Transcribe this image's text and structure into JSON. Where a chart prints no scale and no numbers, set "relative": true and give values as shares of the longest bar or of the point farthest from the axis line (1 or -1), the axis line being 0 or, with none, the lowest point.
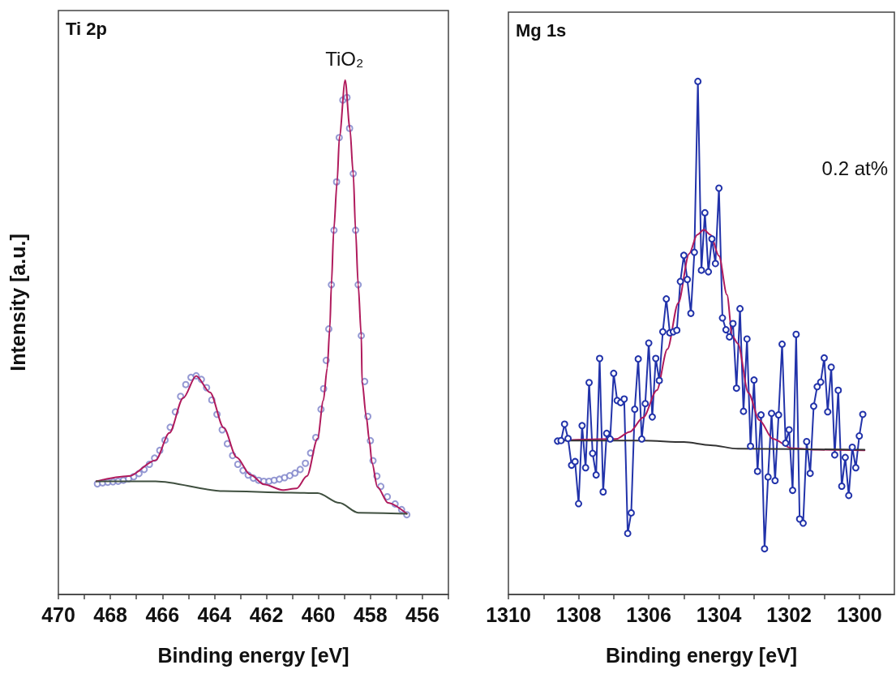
{
  "chart_data": [
    {
      "type": "line",
      "title": "Ti 2p",
      "xlabel": "Binding energy [eV]",
      "ylabel": "Intensity [a.u.]",
      "relative": true,
      "tick_labels": "x",
      "grid": false,
      "xlim": [
        470,
        455
      ],
      "xticks": [
        470,
        {
          "value": 469,
          "label": null
        },
        468,
        {
          "value": 467,
          "label": null
        },
        466,
        {
          "value": 465,
          "label": null
        },
        464,
        {
          "value": 463,
          "label": null
        },
        462,
        {
          "value": 461,
          "label": null
        },
        460,
        {
          "value": 459,
          "label": null
        },
        458,
        {
          "value": 457,
          "label": null
        },
        456,
        {
          "value": 455,
          "label": null
        }
      ],
      "annotations": [
        {
          "text": "TiO₂",
          "x": 459,
          "y": 1.0
        }
      ],
      "series": [
        {
          "type": "scatter",
          "marker": "circle",
          "color": "#7a7fc8",
          "x": [
            468.5,
            468.3,
            468.1,
            467.9,
            467.7,
            467.5,
            467.3,
            467.1,
            466.9,
            466.7,
            466.5,
            466.3,
            466.1,
            465.9,
            465.7,
            465.5,
            465.3,
            465.1,
            464.9,
            464.7,
            464.5,
            464.3,
            464.1,
            463.9,
            463.7,
            463.5,
            463.3,
            463.1,
            462.9,
            462.7,
            462.5,
            462.3,
            462.1,
            461.9,
            461.7,
            461.5,
            461.3,
            461.1,
            460.9,
            460.7,
            460.5,
            460.3,
            460.1,
            459.9,
            459.8,
            459.7,
            459.6,
            459.5,
            459.4,
            459.3,
            459.2,
            459.06,
            458.9,
            458.8,
            458.66,
            458.57,
            458.47,
            458.35,
            458.22,
            458.1,
            458.0,
            457.9,
            457.75,
            457.6,
            457.35,
            457.05,
            456.8,
            456.6
          ],
          "values": [
            0.215,
            0.217,
            0.218,
            0.219,
            0.22,
            0.222,
            0.225,
            0.229,
            0.235,
            0.243,
            0.253,
            0.265,
            0.28,
            0.3,
            0.325,
            0.355,
            0.385,
            0.408,
            0.422,
            0.425,
            0.418,
            0.402,
            0.378,
            0.35,
            0.32,
            0.293,
            0.27,
            0.253,
            0.241,
            0.232,
            0.226,
            0.222,
            0.22,
            0.22,
            0.222,
            0.224,
            0.227,
            0.231,
            0.236,
            0.243,
            0.255,
            0.275,
            0.305,
            0.36,
            0.4,
            0.455,
            0.516,
            0.602,
            0.708,
            0.802,
            0.888,
            0.961,
            0.966,
            0.906,
            0.818,
            0.708,
            0.602,
            0.503,
            0.414,
            0.346,
            0.299,
            0.26,
            0.23,
            0.21,
            0.19,
            0.176,
            0.165,
            0.155
          ]
        },
        {
          "type": "line",
          "marker": "none",
          "color": "#b01a5c",
          "x": [
            468.54,
            467.29,
            466.26,
            465.73,
            465.2,
            464.7,
            464.17,
            463.64,
            463.15,
            462.62,
            462.09,
            461.37,
            460.84,
            460.44,
            460.03,
            459.81,
            459.66,
            459.56,
            459.5,
            459.41,
            459.28,
            459.19,
            458.97,
            458.79,
            458.66,
            458.57,
            458.47,
            458.35,
            458.32,
            458.16,
            458.04,
            457.94,
            457.73,
            457.32,
            456.6
          ],
          "values": [
            0.22,
            0.23,
            0.261,
            0.314,
            0.382,
            0.425,
            0.393,
            0.324,
            0.267,
            0.233,
            0.214,
            0.203,
            0.206,
            0.23,
            0.303,
            0.377,
            0.44,
            0.519,
            0.602,
            0.708,
            0.802,
            0.89,
            1.0,
            0.906,
            0.818,
            0.708,
            0.602,
            0.503,
            0.414,
            0.346,
            0.299,
            0.256,
            0.209,
            0.178,
            0.157
          ]
        },
        {
          "type": "line",
          "marker": "none",
          "color": "#3f4f3f",
          "x": [
            468.54,
            466.26,
            463.64,
            461.06,
            460.03,
            459.19,
            458.47,
            456.6
          ],
          "values": [
            0.22,
            0.22,
            0.201,
            0.198,
            0.197,
            0.178,
            0.159,
            0.157
          ]
        }
      ]
    },
    {
      "type": "line",
      "title": "Mg 1s",
      "xlabel": "Binding energy [eV]",
      "relative": true,
      "tick_labels": "x",
      "grid": false,
      "xlim": [
        1310,
        1299
      ],
      "xticks": [
        1310,
        {
          "value": 1309,
          "label": null
        },
        1308,
        {
          "value": 1307,
          "label": null
        },
        1306,
        {
          "value": 1305,
          "label": null
        },
        1304,
        {
          "value": 1303,
          "label": null
        },
        1302,
        {
          "value": 1301,
          "label": null
        },
        1300
      ],
      "annotations": [
        "0.2 at%"
      ],
      "series": [
        {
          "type": "line",
          "marker": "circle",
          "color": "#2233aa",
          "x": [
            1308.6,
            1308.5,
            1308.4,
            1308.3,
            1308.2,
            1308.1,
            1308.0,
            1307.9,
            1307.8,
            1307.7,
            1307.6,
            1307.5,
            1307.4,
            1307.3,
            1307.2,
            1307.1,
            1307.0,
            1306.9,
            1306.8,
            1306.7,
            1306.6,
            1306.5,
            1306.4,
            1306.3,
            1306.2,
            1306.1,
            1306.0,
            1305.9,
            1305.8,
            1305.7,
            1305.6,
            1305.5,
            1305.4,
            1305.3,
            1305.2,
            1305.1,
            1305.0,
            1304.9,
            1304.8,
            1304.7,
            1304.6,
            1304.5,
            1304.4,
            1304.3,
            1304.2,
            1304.1,
            1304.0,
            1303.9,
            1303.8,
            1303.7,
            1303.6,
            1303.5,
            1303.4,
            1303.3,
            1303.2,
            1303.1,
            1303.0,
            1302.9,
            1302.8,
            1302.7,
            1302.6,
            1302.5,
            1302.4,
            1302.3,
            1302.2,
            1302.1,
            1302.0,
            1301.9,
            1301.8,
            1301.7,
            1301.6,
            1301.5,
            1301.4,
            1301.3,
            1301.2,
            1301.1,
            1301.0,
            1300.9,
            1300.8,
            1300.7,
            1300.6,
            1300.5,
            1300.4,
            1300.3,
            1300.2,
            1300.1,
            1300.0,
            1299.9
          ],
          "values": [
            0.299,
            0.3,
            0.332,
            0.304,
            0.252,
            0.259,
            0.177,
            0.329,
            0.247,
            0.413,
            0.275,
            0.233,
            0.46,
            0.2,
            0.314,
            0.303,
            0.431,
            0.378,
            0.374,
            0.381,
            0.119,
            0.159,
            0.361,
            0.459,
            0.303,
            0.372,
            0.49,
            0.346,
            0.46,
            0.417,
            0.512,
            0.576,
            0.51,
            0.512,
            0.515,
            0.61,
            0.661,
            0.614,
            0.548,
            0.667,
            1.0,
            0.632,
            0.744,
            0.629,
            0.693,
            0.645,
            0.792,
            0.539,
            0.516,
            0.502,
            0.528,
            0.402,
            0.557,
            0.357,
            0.498,
            0.289,
            0.418,
            0.24,
            0.35,
            0.089,
            0.229,
            0.353,
            0.222,
            0.35,
            0.488,
            0.295,
            0.321,
            0.203,
            0.507,
            0.147,
            0.139,
            0.298,
            0.236,
            0.367,
            0.405,
            0.414,
            0.461,
            0.356,
            0.443,
            0.272,
            0.398,
            0.211,
            0.267,
            0.193,
            0.287,
            0.247,
            0.309,
            0.351
          ]
        },
        {
          "type": "line",
          "marker": "none",
          "color": "#b01a5c",
          "x": [
            1308.6,
            1306.93,
            1306.54,
            1306.16,
            1305.77,
            1305.47,
            1305.16,
            1304.85,
            1304.62,
            1304.43,
            1304.24,
            1304.0,
            1303.77,
            1303.62,
            1303.46,
            1303.16,
            1302.85,
            1302.46,
            1301.92,
            1301.15,
            1299.85
          ],
          "values": [
            0.3,
            0.303,
            0.317,
            0.345,
            0.398,
            0.478,
            0.568,
            0.664,
            0.701,
            0.711,
            0.701,
            0.66,
            0.584,
            0.504,
            0.489,
            0.393,
            0.34,
            0.303,
            0.285,
            0.282,
            0.281
          ]
        },
        {
          "type": "line",
          "marker": "none",
          "color": "#333333",
          "x": [
            1308.6,
            1306.16,
            1305.0,
            1304.24,
            1303.46,
            1299.85
          ],
          "values": [
            0.3,
            0.3,
            0.297,
            0.291,
            0.284,
            0.282
          ]
        }
      ]
    }
  ]
}
